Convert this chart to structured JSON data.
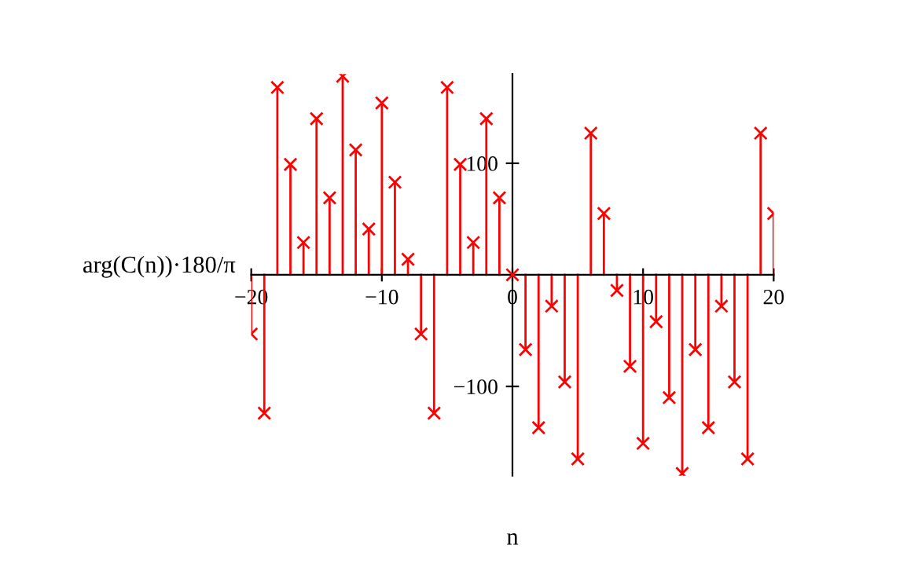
{
  "chart_data": {
    "type": "lollipop",
    "xlabel": "n",
    "ylabel": "arg(C(n))·180/π",
    "x": [
      -20,
      -19,
      -18,
      -17,
      -16,
      -15,
      -14,
      -13,
      -12,
      -11,
      -10,
      -9,
      -8,
      -7,
      -6,
      -5,
      -4,
      -3,
      -2,
      -1,
      0,
      1,
      2,
      3,
      4,
      5,
      6,
      7,
      8,
      9,
      10,
      11,
      12,
      13,
      14,
      15,
      16,
      17,
      18,
      19,
      20
    ],
    "series": [
      {
        "color": "#ff0000",
        "values": [
          -53,
          -124,
          168,
          99,
          29,
          140,
          69,
          178,
          112,
          41,
          154,
          83,
          14,
          -53,
          -124,
          168,
          99,
          29,
          140,
          69,
          0,
          -67,
          -137,
          -28,
          -96,
          -165,
          127,
          55,
          -14,
          -82,
          -151,
          -42,
          -110,
          -178,
          -67,
          -137,
          -28,
          -96,
          -165,
          127,
          55
        ]
      }
    ],
    "xlim": [
      -20,
      20
    ],
    "ylim": [
      -180,
      180
    ],
    "xticks": [
      {
        "value": -20,
        "label": "−20"
      },
      {
        "value": -10,
        "label": "−10"
      },
      0,
      10,
      20
    ],
    "yticks": [
      {
        "value": -100,
        "label": "−100"
      },
      100
    ],
    "marker": "cross",
    "grid": false,
    "legend": false
  }
}
